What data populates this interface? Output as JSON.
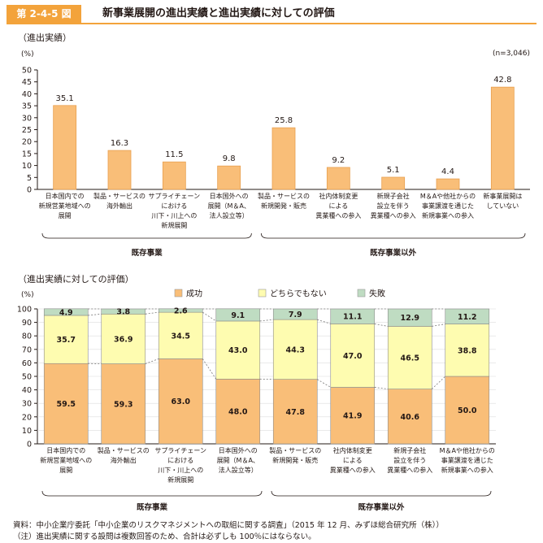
{
  "header": {
    "figure_label": "第 2-4-5 図",
    "title": "新事業展開の進出実績と進出実績に対しての評価"
  },
  "colors": {
    "accent": "#f3a33b",
    "bar": "#f9be78",
    "bar_stroke": "#e8a050",
    "success": "#f9be78",
    "neutral": "#fefcb0",
    "failure": "#bfdcc2",
    "grid": "#c8c8c8"
  },
  "chart_data": [
    {
      "type": "bar",
      "title": "（進出実績）",
      "ylabel": "(%)",
      "note": "(n=3,046)",
      "ylim": [
        0,
        50
      ],
      "yticks": [
        "0",
        "5",
        "10",
        "15",
        "20",
        "25",
        "30",
        "35",
        "40",
        "45",
        "50"
      ],
      "categories": [
        [
          "日本国内での",
          "新規営業地域への",
          "展開"
        ],
        [
          "製品・サービスの",
          "海外輸出"
        ],
        [
          "サプライチェーン",
          "における",
          "川下・川上への",
          "新規展開"
        ],
        [
          "日本国外への",
          "展開（M＆A、",
          "法人設立等）"
        ],
        [
          "製品・サービスの",
          "新規開発・販売"
        ],
        [
          "社内体制変更",
          "による",
          "異業種への参入"
        ],
        [
          "新規子会社",
          "設立を伴う",
          "異業種への参入"
        ],
        [
          "M＆Aや他社からの",
          "事業譲渡を通じた",
          "新規事業への参入"
        ],
        [
          "新事業展開は",
          "していない"
        ]
      ],
      "values": [
        35.1,
        16.3,
        11.5,
        9.8,
        25.8,
        9.2,
        5.1,
        4.4,
        42.8
      ],
      "value_labels": [
        "35.1",
        "16.3",
        "11.5",
        "9.8",
        "25.8",
        "9.2",
        "5.1",
        "4.4",
        "42.8"
      ],
      "groups": [
        {
          "label": "既存事業",
          "from": 0,
          "to": 3
        },
        {
          "label": "既存事業以外",
          "from": 4,
          "to": 8
        }
      ]
    },
    {
      "type": "bar",
      "stacked": true,
      "title": "（進出実績に対しての評価）",
      "ylabel": "(%)",
      "ylim": [
        0,
        100
      ],
      "yticks": [
        "0",
        "10",
        "20",
        "30",
        "40",
        "50",
        "60",
        "70",
        "80",
        "90",
        "100"
      ],
      "categories": [
        [
          "日本国内での",
          "新規営業地域への",
          "展開"
        ],
        [
          "製品・サービスの",
          "海外輸出"
        ],
        [
          "サプライチェーン",
          "における",
          "川下・川上への",
          "新規展開"
        ],
        [
          "日本国外への",
          "展開（M＆A、",
          "法人設立等）"
        ],
        [
          "製品・サービスの",
          "新規開発・販売"
        ],
        [
          "社内体制変更",
          "による",
          "異業種への参入"
        ],
        [
          "新規子会社",
          "設立を伴う",
          "異業種への参入"
        ],
        [
          "M＆Aや他社からの",
          "事業譲渡を通じた",
          "新規事業への参入"
        ]
      ],
      "series": [
        {
          "name": "成功",
          "values": [
            59.5,
            59.3,
            63.0,
            48.0,
            47.8,
            41.9,
            40.6,
            50.0
          ],
          "labels": [
            "59.5",
            "59.3",
            "63.0",
            "48.0",
            "47.8",
            "41.9",
            "40.6",
            "50.0"
          ]
        },
        {
          "name": "どちらでもない",
          "values": [
            35.7,
            36.9,
            34.5,
            43.0,
            44.3,
            47.0,
            46.5,
            38.8
          ],
          "labels": [
            "35.7",
            "36.9",
            "34.5",
            "43.0",
            "44.3",
            "47.0",
            "46.5",
            "38.8"
          ]
        },
        {
          "name": "失敗",
          "values": [
            4.9,
            3.8,
            2.6,
            9.1,
            7.9,
            11.1,
            12.9,
            11.2
          ],
          "labels": [
            "4.9",
            "3.8",
            "2.6",
            "9.1",
            "7.9",
            "11.1",
            "12.9",
            "11.2"
          ]
        }
      ],
      "groups": [
        {
          "label": "既存事業",
          "from": 0,
          "to": 3
        },
        {
          "label": "既存事業以外",
          "from": 4,
          "to": 7
        }
      ]
    }
  ],
  "notes": [
    "資料：中小企業庁委託「中小企業のリスクマネジメントへの取組に関する調査」（2015 年 12 月、みずほ総合研究所（株））",
    "（注）進出実績に関する設問は複数回答のため、合計は必ずしも 100％にはならない。"
  ]
}
